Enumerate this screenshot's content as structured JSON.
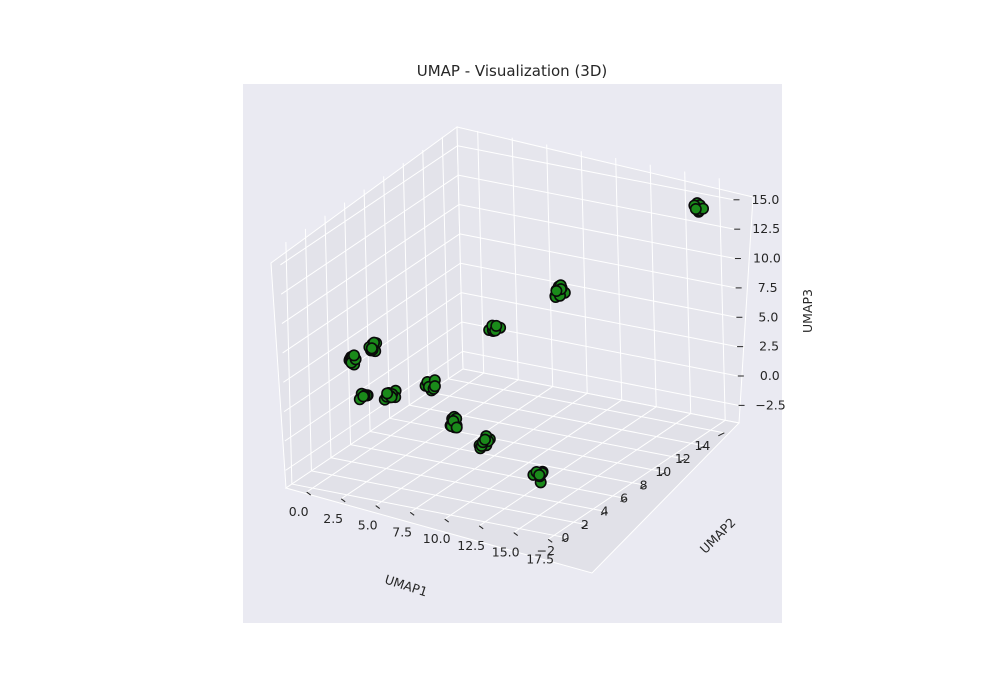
{
  "chart_data": {
    "type": "scatter",
    "projection": "3d",
    "title": "UMAP - Visualization (3D)",
    "xlabel": "UMAP1",
    "ylabel": "UMAP2",
    "zlabel": "UMAP3",
    "xlim": [
      -1.5,
      18.5
    ],
    "ylim": [
      -2.6,
      15.5
    ],
    "zlim": [
      -4.0,
      16.6
    ],
    "xticks": [
      "0.0",
      "2.5",
      "5.0",
      "7.5",
      "10.0",
      "12.5",
      "15.0",
      "17.5"
    ],
    "yticks": [
      "−2",
      "0",
      "2",
      "4",
      "6",
      "8",
      "10",
      "12",
      "14"
    ],
    "zticks": [
      "−2.5",
      "0.0",
      "2.5",
      "5.0",
      "7.5",
      "10.0",
      "12.5",
      "15.0"
    ],
    "grid": true,
    "style": "seaborn-darkgrid",
    "marker": {
      "face": "#1a8a1a",
      "edge": "#0a0a0a"
    },
    "colors": {
      "figure_bg": "#ffffff",
      "axes_bg": "#eaeaf2",
      "pane_bg": "#e3e3ea",
      "grid": "#ffffff",
      "text": "#262626"
    },
    "clusters": [
      {
        "x": 0.5,
        "y": 1.5,
        "z": 5.0
      },
      {
        "x": 1.5,
        "y": 2.5,
        "z": 5.8
      },
      {
        "x": 1.0,
        "y": 2.0,
        "z": 1.8
      },
      {
        "x": 2.2,
        "y": 3.0,
        "z": 1.6
      },
      {
        "x": 4.0,
        "y": 4.5,
        "z": 2.0
      },
      {
        "x": 6.0,
        "y": 4.0,
        "z": -0.5
      },
      {
        "x": 7.0,
        "y": 7.0,
        "z": 6.0
      },
      {
        "x": 10.5,
        "y": 9.0,
        "z": 9.0
      },
      {
        "x": 9.0,
        "y": 3.0,
        "z": -0.8
      },
      {
        "x": 13.5,
        "y": 2.0,
        "z": -2.2
      },
      {
        "x": 17.0,
        "y": 14.0,
        "z": 15.0
      }
    ]
  }
}
